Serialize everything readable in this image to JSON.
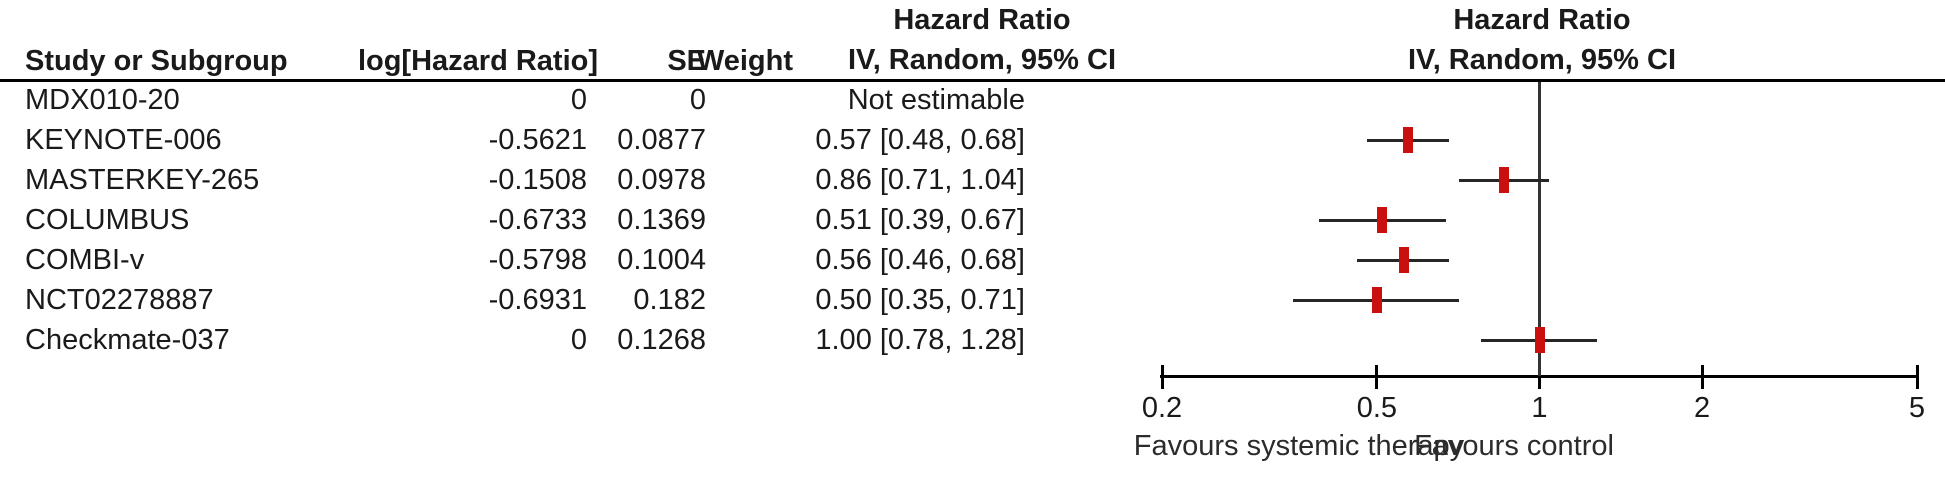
{
  "colors": {
    "marker": "#c9100f",
    "ci_line": "#262626",
    "axis": "#000000",
    "center_line": "#333333",
    "text": "#1a1a1a"
  },
  "table": {
    "headers": {
      "study": "Study or Subgroup",
      "log_hr": "log[Hazard Ratio]",
      "se": "SE",
      "weight": "Weight",
      "ci_col_line1": "Hazard Ratio",
      "ci_col_line2": "IV, Random, 95% CI"
    },
    "rows": [
      {
        "study": "MDX010-20",
        "log_hr": "0",
        "se": "0",
        "weight": "",
        "ci_text": "Not estimable"
      },
      {
        "study": "KEYNOTE-006",
        "log_hr": "-0.5621",
        "se": "0.0877",
        "weight": "",
        "ci_text": "0.57 [0.48, 0.68]"
      },
      {
        "study": "MASTERKEY-265",
        "log_hr": "-0.1508",
        "se": "0.0978",
        "weight": "",
        "ci_text": "0.86 [0.71, 1.04]"
      },
      {
        "study": "COLUMBUS",
        "log_hr": "-0.6733",
        "se": "0.1369",
        "weight": "",
        "ci_text": "0.51 [0.39, 0.67]"
      },
      {
        "study": "COMBI-v",
        "log_hr": "-0.5798",
        "se": "0.1004",
        "weight": "",
        "ci_text": "0.56 [0.46, 0.68]"
      },
      {
        "study": "NCT02278887",
        "log_hr": "-0.6931",
        "se": "0.182",
        "weight": "",
        "ci_text": "0.50 [0.35, 0.71]"
      },
      {
        "study": "Checkmate-037",
        "log_hr": "0",
        "se": "0.1268",
        "weight": "",
        "ci_text": "1.00 [0.78, 1.28]"
      }
    ]
  },
  "plot": {
    "header_line1": "Hazard Ratio",
    "header_line2": "IV, Random, 95% CI",
    "tick_labels": [
      "0.2",
      "0.5",
      "1",
      "2",
      "5"
    ],
    "left_label": "Favours systemic therapy",
    "right_label": "Favours control"
  },
  "chart_data": {
    "type": "scatter",
    "subtype": "forest_plot",
    "title": "Hazard Ratio IV, Random, 95% CI",
    "x_scale": "log",
    "x_range": [
      0.2,
      5
    ],
    "x_ticks": [
      0.2,
      0.5,
      1,
      2,
      5
    ],
    "no_effect_line": 1,
    "axis_label_left": "Favours systemic therapy",
    "axis_label_right": "Favours control",
    "points": [
      {
        "study": "MDX010-20",
        "log_hr": 0,
        "se": 0,
        "hr": null,
        "ci_low": null,
        "ci_high": null,
        "note": "Not estimable"
      },
      {
        "study": "KEYNOTE-006",
        "log_hr": -0.5621,
        "se": 0.0877,
        "hr": 0.57,
        "ci_low": 0.48,
        "ci_high": 0.68
      },
      {
        "study": "MASTERKEY-265",
        "log_hr": -0.1508,
        "se": 0.0978,
        "hr": 0.86,
        "ci_low": 0.71,
        "ci_high": 1.04
      },
      {
        "study": "COLUMBUS",
        "log_hr": -0.6733,
        "se": 0.1369,
        "hr": 0.51,
        "ci_low": 0.39,
        "ci_high": 0.67
      },
      {
        "study": "COMBI-v",
        "log_hr": -0.5798,
        "se": 0.1004,
        "hr": 0.56,
        "ci_low": 0.46,
        "ci_high": 0.68
      },
      {
        "study": "NCT02278887",
        "log_hr": -0.6931,
        "se": 0.182,
        "hr": 0.5,
        "ci_low": 0.35,
        "ci_high": 0.71
      },
      {
        "study": "Checkmate-037",
        "log_hr": 0,
        "se": 0.1268,
        "hr": 1.0,
        "ci_low": 0.78,
        "ci_high": 1.28
      }
    ]
  }
}
